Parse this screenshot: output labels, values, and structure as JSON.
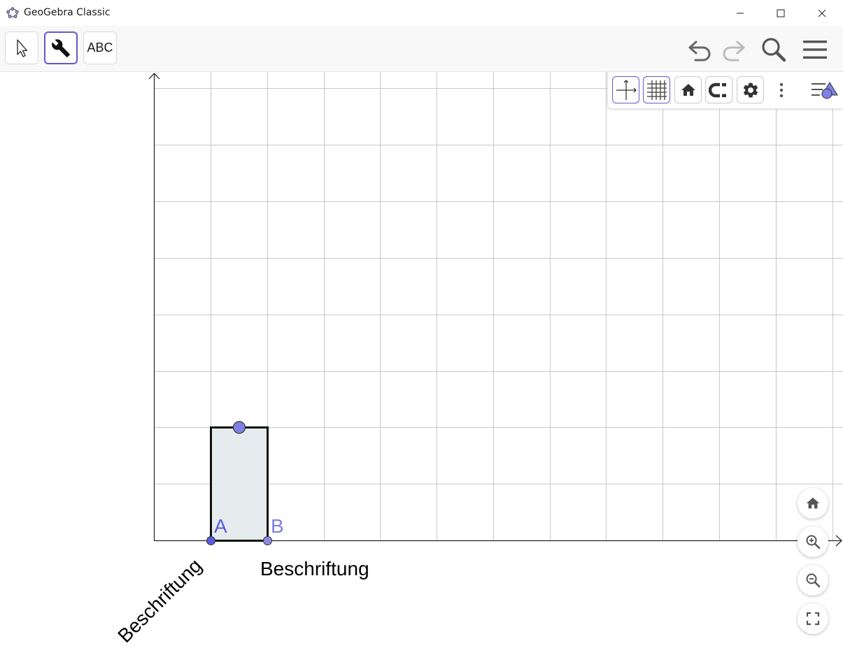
{
  "window": {
    "title": "GeoGebra Classic",
    "controls": [
      "minimize-icon",
      "maximize-icon",
      "close-icon"
    ]
  },
  "toolbar": {
    "tools": [
      {
        "name": "move-tool",
        "icon": "arrow-pointer-icon",
        "active": false
      },
      {
        "name": "tools-menu",
        "icon": "wrench-icon",
        "active": true
      },
      {
        "name": "text-tool",
        "label": "ABC",
        "active": false
      }
    ],
    "right": [
      "undo-icon",
      "redo-icon",
      "search-icon",
      "menu-icon"
    ]
  },
  "style_bar": {
    "buttons": [
      {
        "name": "toggle-axes",
        "icon": "axes-icon",
        "selected": true
      },
      {
        "name": "toggle-grid",
        "icon": "grid-icon",
        "selected": true
      },
      {
        "name": "standard-view",
        "icon": "home-icon",
        "selected": false
      },
      {
        "name": "point-capturing",
        "icon": "magnet-icon",
        "selected": false
      },
      {
        "name": "graphics-settings",
        "icon": "gear-icon",
        "selected": false
      }
    ],
    "more": "more-vertical-icon",
    "toggle": "style-bar-toggle-icon"
  },
  "graphics": {
    "points": [
      {
        "label": "A",
        "color": "#5b5bde"
      },
      {
        "label": "B",
        "color": "#7f7fe3"
      }
    ],
    "x_axis_label": "Beschriftung",
    "y_axis_label": "Beschriftung",
    "rectangle_fill": "#e6eced",
    "accent": "#6557d2"
  },
  "zoom_controls": [
    "home-icon",
    "zoom-in-icon",
    "zoom-out-icon",
    "fullscreen-icon"
  ]
}
